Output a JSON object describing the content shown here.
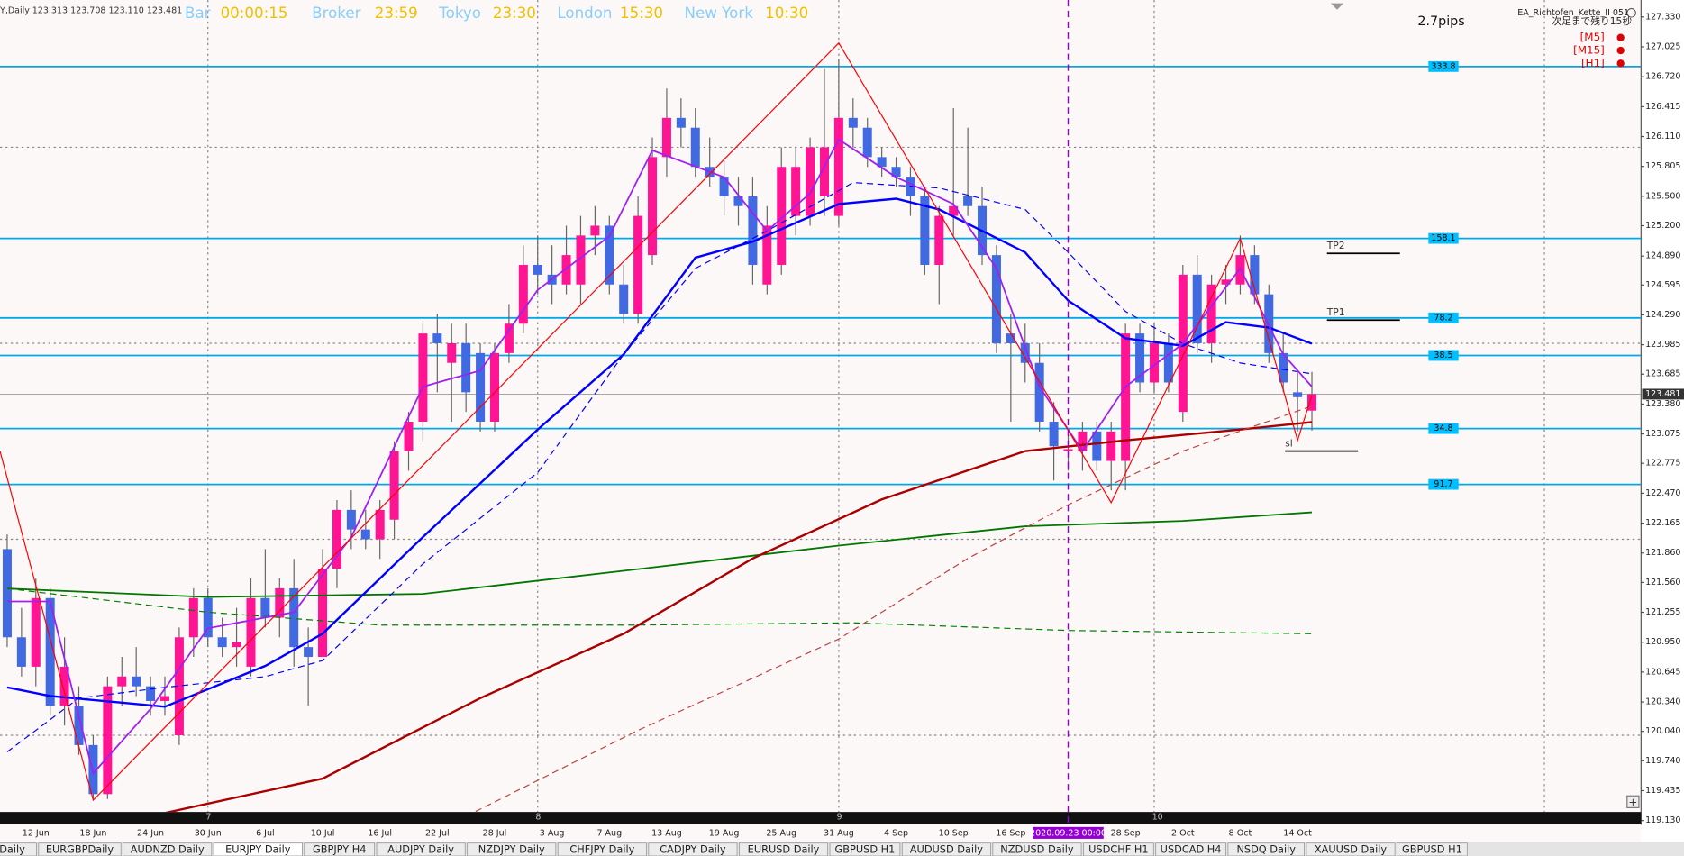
{
  "header": {
    "symbol": "Y,Daily",
    "ohlc": "123.313 123.708 123.110 123.481",
    "clocks": [
      {
        "name": "Bar",
        "time": "00:00:15"
      },
      {
        "name": "Broker",
        "time": "23:59"
      },
      {
        "name": "Tokyo",
        "time": "23:30"
      },
      {
        "name": "London",
        "time": "15:30"
      },
      {
        "name": "New York",
        "time": "10:30"
      }
    ],
    "spread": "2.7pips",
    "ea": "EA_Richtofen_Kette_II 051",
    "countdown": "次足まで残り15秒",
    "timeframes": [
      "[M5]",
      "[M15]",
      "[H1]"
    ]
  },
  "tabs": [
    {
      "label": "Y Daily"
    },
    {
      "label": "EURGBPDaily"
    },
    {
      "label": "AUDNZD Daily"
    },
    {
      "label": "EURJPY Daily",
      "active": true
    },
    {
      "label": "GBPJPY H4"
    },
    {
      "label": "AUDJPY Daily"
    },
    {
      "label": "NZDJPY Daily"
    },
    {
      "label": "CHFJPY Daily"
    },
    {
      "label": "CADJPY Daily"
    },
    {
      "label": "EURUSD Daily"
    },
    {
      "label": "GBPUSD H1"
    },
    {
      "label": "AUDUSD Daily"
    },
    {
      "label": "NZDUSD Daily"
    },
    {
      "label": "USDCHF H1"
    },
    {
      "label": "USDCAD H4"
    },
    {
      "label": "NSDQ Daily"
    },
    {
      "label": "XAUUSD Daily"
    },
    {
      "label": "GBPUSD H1"
    }
  ],
  "chart_data": {
    "type": "candlestick",
    "up_color": "#ff1493",
    "down_color": "#4169e1",
    "categories": [
      null,
      null,
      "12 Jun",
      null,
      null,
      null,
      "18 Jun",
      null,
      null,
      null,
      "24 Jun",
      null,
      null,
      null,
      "30 Jun",
      null,
      null,
      null,
      "6 Jul",
      null,
      null,
      null,
      "10 Jul",
      null,
      null,
      null,
      "16 Jul",
      null,
      null,
      null,
      "22 Jul",
      null,
      null,
      null,
      "28 Jul",
      null,
      null,
      null,
      "3 Aug",
      null,
      null,
      null,
      "7 Aug",
      null,
      null,
      null,
      "13 Aug",
      null,
      null,
      null,
      "19 Aug",
      null,
      null,
      null,
      "25 Aug",
      null,
      null,
      null,
      "31 Aug",
      null,
      null,
      null,
      "4 Sep",
      null,
      null,
      null,
      "10 Sep",
      null,
      null,
      null,
      "16 Sep",
      null,
      null,
      null,
      null,
      null,
      null,
      null,
      "28 Sep",
      null,
      null,
      null,
      "2 Oct",
      null,
      null,
      null,
      "8 Oct",
      null,
      null,
      null,
      "14 Oct",
      null
    ],
    "open": [
      121.9,
      121.0,
      120.7,
      121.4,
      120.3,
      120.3,
      119.9,
      119.4,
      120.5,
      120.6,
      120.5,
      120.35,
      120.0,
      121.0,
      121.4,
      121.0,
      120.9,
      120.7,
      121.4,
      121.2,
      121.5,
      120.9,
      120.8,
      121.7,
      122.3,
      122.1,
      122.0,
      122.2,
      122.9,
      123.2,
      124.1,
      123.8,
      124.0,
      123.9,
      123.2,
      123.9,
      124.2,
      124.8,
      124.7,
      124.6,
      124.6,
      125.1,
      125.2,
      124.6,
      124.3,
      124.9,
      125.9,
      126.3,
      126.2,
      125.8,
      125.7,
      125.5,
      125.5,
      124.6,
      124.8,
      125.3,
      125.3,
      125.5,
      125.3,
      126.3,
      126.2,
      125.9,
      125.8,
      125.7,
      125.5,
      124.8,
      125.3,
      125.5,
      125.4,
      124.9,
      124.1,
      124.0,
      123.8,
      123.2,
      122.9,
      122.9,
      123.1,
      122.8,
      122.8,
      124.1,
      123.6,
      124.0,
      123.3,
      124.7,
      124.0,
      124.6,
      124.6,
      124.9,
      124.5,
      123.9,
      123.5,
      123.313
    ],
    "high": [
      122.05,
      121.3,
      121.6,
      121.5,
      121.0,
      120.5,
      120.0,
      120.6,
      120.8,
      120.9,
      120.6,
      120.6,
      121.1,
      121.5,
      121.5,
      121.2,
      121.3,
      121.6,
      121.9,
      121.6,
      121.8,
      121.1,
      121.9,
      122.4,
      122.5,
      122.3,
      122.4,
      123.0,
      123.3,
      124.2,
      124.3,
      124.2,
      124.2,
      124.0,
      124.0,
      124.4,
      125.0,
      125.1,
      125.0,
      125.2,
      125.3,
      125.4,
      125.3,
      124.8,
      125.5,
      126.1,
      126.6,
      126.5,
      126.4,
      126.1,
      125.9,
      125.7,
      125.7,
      125.4,
      126.0,
      126.0,
      126.1,
      126.8,
      126.9,
      126.5,
      126.3,
      126.0,
      125.9,
      125.8,
      125.6,
      125.4,
      126.4,
      126.2,
      125.6,
      125.0,
      124.3,
      124.2,
      124.0,
      123.4,
      123.1,
      123.2,
      123.2,
      123.2,
      124.2,
      124.2,
      124.2,
      124.1,
      124.8,
      124.9,
      124.7,
      124.8,
      125.1,
      125.0,
      124.6,
      124.1,
      123.7,
      123.708
    ],
    "low": [
      120.9,
      120.6,
      120.5,
      120.2,
      120.1,
      119.8,
      119.35,
      119.35,
      120.3,
      120.4,
      120.2,
      120.2,
      119.9,
      120.8,
      120.9,
      120.8,
      120.7,
      120.6,
      121.1,
      121.0,
      120.7,
      120.3,
      120.8,
      121.5,
      121.9,
      121.9,
      121.8,
      122.0,
      122.7,
      123.0,
      123.5,
      123.2,
      123.3,
      123.1,
      123.1,
      123.8,
      124.1,
      124.5,
      124.4,
      124.5,
      124.4,
      124.9,
      124.5,
      124.2,
      124.2,
      124.8,
      125.7,
      126.0,
      125.7,
      125.6,
      125.3,
      125.2,
      124.6,
      124.5,
      124.7,
      125.1,
      125.2,
      125.3,
      125.2,
      126.0,
      125.8,
      125.7,
      125.6,
      125.3,
      124.7,
      124.4,
      125.1,
      125.3,
      124.8,
      123.9,
      123.2,
      123.6,
      123.1,
      122.6,
      122.7,
      122.7,
      122.7,
      122.5,
      122.5,
      123.5,
      123.5,
      123.5,
      123.2,
      123.9,
      123.8,
      124.4,
      124.5,
      124.4,
      123.8,
      123.5,
      123.1,
      123.11
    ],
    "close": [
      121.0,
      120.7,
      121.4,
      120.3,
      120.7,
      119.9,
      119.4,
      120.5,
      120.6,
      120.5,
      120.35,
      120.4,
      121.0,
      121.4,
      121.0,
      120.9,
      120.95,
      121.4,
      121.2,
      121.5,
      120.9,
      120.8,
      121.7,
      122.3,
      122.1,
      122.0,
      122.3,
      122.9,
      123.2,
      124.1,
      124.0,
      124.0,
      123.5,
      123.2,
      123.9,
      124.2,
      124.8,
      124.7,
      124.6,
      124.9,
      125.1,
      125.2,
      124.6,
      124.3,
      125.3,
      125.9,
      126.3,
      126.2,
      125.8,
      125.7,
      125.5,
      125.4,
      124.8,
      125.2,
      125.8,
      125.8,
      126.0,
      126.0,
      126.3,
      126.2,
      125.9,
      125.8,
      125.7,
      125.5,
      124.8,
      125.3,
      125.4,
      125.4,
      124.9,
      124.0,
      124.0,
      123.8,
      123.2,
      122.95,
      122.92,
      123.1,
      122.8,
      123.1,
      124.1,
      123.6,
      124.0,
      123.6,
      124.7,
      124.0,
      124.6,
      124.65,
      124.9,
      124.5,
      123.9,
      123.6,
      123.45,
      123.481
    ],
    "ylim": [
      119.086,
      127.503
    ],
    "yticks": [
      {
        "value": 127.33,
        "label": "127.330"
      },
      {
        "value": 127.025,
        "label": "127.025"
      },
      {
        "value": 126.72,
        "label": "126.720"
      },
      {
        "value": 126.415,
        "label": "126.415"
      },
      {
        "value": 126.11,
        "label": "126.110"
      },
      {
        "value": 125.805,
        "label": "125.805"
      },
      {
        "value": 125.5,
        "label": "125.500"
      },
      {
        "value": 125.2,
        "label": "125.200"
      },
      {
        "value": 124.89,
        "label": "124.890"
      },
      {
        "value": 124.595,
        "label": "124.595"
      },
      {
        "value": 124.29,
        "label": "124.290"
      },
      123.985,
      123.685,
      {
        "value": 123.38,
        "label": "123.380"
      },
      123.075,
      122.775,
      {
        "value": 122.47,
        "label": "122.470"
      },
      122.165,
      {
        "value": 121.86,
        "label": "121.860"
      },
      {
        "value": 121.56,
        "label": "121.560"
      },
      121.255,
      {
        "value": 120.95,
        "label": "120.950"
      },
      120.645,
      {
        "value": 120.34,
        "label": "120.340"
      },
      {
        "value": 120.04,
        "label": "120.040"
      },
      {
        "value": 119.74,
        "label": "119.740"
      },
      119.435,
      {
        "value": 119.13,
        "label": "119.130"
      }
    ],
    "grid": true,
    "grid_levels": [
      126,
      124,
      122,
      120
    ],
    "months": [
      {
        "label": "7",
        "index": 14
      },
      {
        "label": "8",
        "index": 37
      },
      {
        "label": "9",
        "index": 58
      },
      {
        "label": "10",
        "index": 80
      }
    ],
    "cursor": {
      "label": "2020.09.23 00:00",
      "index": 74
    },
    "bid": 123.481,
    "levels": [
      {
        "ratio": 333.8,
        "price": 126.824
      },
      {
        "ratio": 158.1,
        "price": 125.07
      },
      {
        "ratio": 78.2,
        "price": 124.259
      },
      {
        "ratio": 38.5,
        "price": 123.876
      },
      {
        "ratio": 34.8,
        "price": 123.13
      },
      {
        "ratio": 91.7,
        "price": 122.56
      }
    ],
    "targets": [
      {
        "label": "TP2",
        "price": 124.917
      },
      {
        "label": "TP1",
        "price": 124.237
      },
      {
        "label": "sl",
        "price": 122.9
      }
    ],
    "lines": [
      {
        "color": "#007700",
        "width": 1.5,
        "dashed": false,
        "x": [
          0,
          14,
          29,
          44,
          58,
          71,
          82,
          91
        ],
        "values": [
          121.497,
          121.41,
          121.442,
          121.695,
          121.936,
          122.133,
          122.188,
          122.275
        ]
      },
      {
        "color": "#008000",
        "width": 1,
        "dashed": true,
        "x": [
          0,
          14,
          26,
          44,
          59,
          74,
          91
        ],
        "values": [
          121.497,
          121.256,
          121.125,
          121.125,
          121.147,
          121.07,
          121.037
        ]
      },
      {
        "color": "#aa0000",
        "width": 2,
        "dashed": false,
        "x": [
          11,
          22,
          33,
          43,
          52,
          61,
          71,
          78,
          86,
          91
        ],
        "values": [
          119.207,
          119.558,
          120.379,
          121.037,
          121.804,
          122.407,
          122.9,
          123.01,
          123.12,
          123.196
        ]
      },
      {
        "color": "#c04040",
        "width": 1,
        "dashed": true,
        "x": [
          32,
          44,
          58,
          67,
          74,
          82,
          91
        ],
        "values": [
          119.174,
          120.05,
          120.982,
          121.804,
          122.352,
          122.9,
          123.36
        ]
      },
      {
        "color": "#0000ff",
        "width": 1,
        "dashed": true,
        "x": [
          0,
          5,
          11,
          18,
          22,
          29,
          37,
          43,
          48,
          53,
          59,
          65,
          71,
          74,
          78,
          82,
          86,
          91
        ],
        "values": [
          119.831,
          120.379,
          120.489,
          120.598,
          120.763,
          121.749,
          122.681,
          123.887,
          124.764,
          125.147,
          125.64,
          125.585,
          125.366,
          124.928,
          124.325,
          123.996,
          123.799,
          123.689
        ]
      },
      {
        "color": "#0000ff",
        "width": 2,
        "dashed": false,
        "x": [
          0,
          3,
          11,
          18,
          22,
          29,
          37,
          43,
          48,
          52,
          58,
          62,
          65,
          71,
          74,
          78,
          82,
          85,
          88,
          91
        ],
        "values": [
          120.489,
          120.401,
          120.292,
          120.708,
          121.037,
          122.023,
          123.119,
          123.887,
          124.874,
          125.037,
          125.421,
          125.476,
          125.366,
          124.928,
          124.435,
          124.051,
          123.974,
          124.215,
          124.16,
          123.996
        ]
      },
      {
        "color": "#a020f0",
        "width": 1.5,
        "dashed": false,
        "x": [
          0,
          3,
          6,
          10,
          14,
          20,
          24,
          29,
          33,
          37,
          42,
          45,
          50,
          53,
          56,
          58,
          62,
          66,
          69,
          72,
          75,
          78,
          82,
          86,
          89,
          91
        ],
        "values": [
          121.366,
          121.366,
          119.612,
          120.27,
          121.092,
          121.256,
          122.023,
          123.558,
          123.722,
          124.544,
          125.092,
          125.969,
          125.695,
          125.147,
          125.53,
          126.079,
          125.695,
          125.421,
          124.764,
          123.558,
          122.9,
          123.558,
          123.996,
          124.764,
          123.887,
          123.558
        ]
      },
      {
        "color": "#ff0000",
        "width": 1,
        "dashed": false,
        "x": [
          -0.5,
          6,
          58,
          77,
          86,
          90,
          91
        ],
        "values": [
          122.9,
          119.338,
          127.065,
          122.374,
          125.07,
          123.01,
          123.47
        ]
      }
    ]
  }
}
